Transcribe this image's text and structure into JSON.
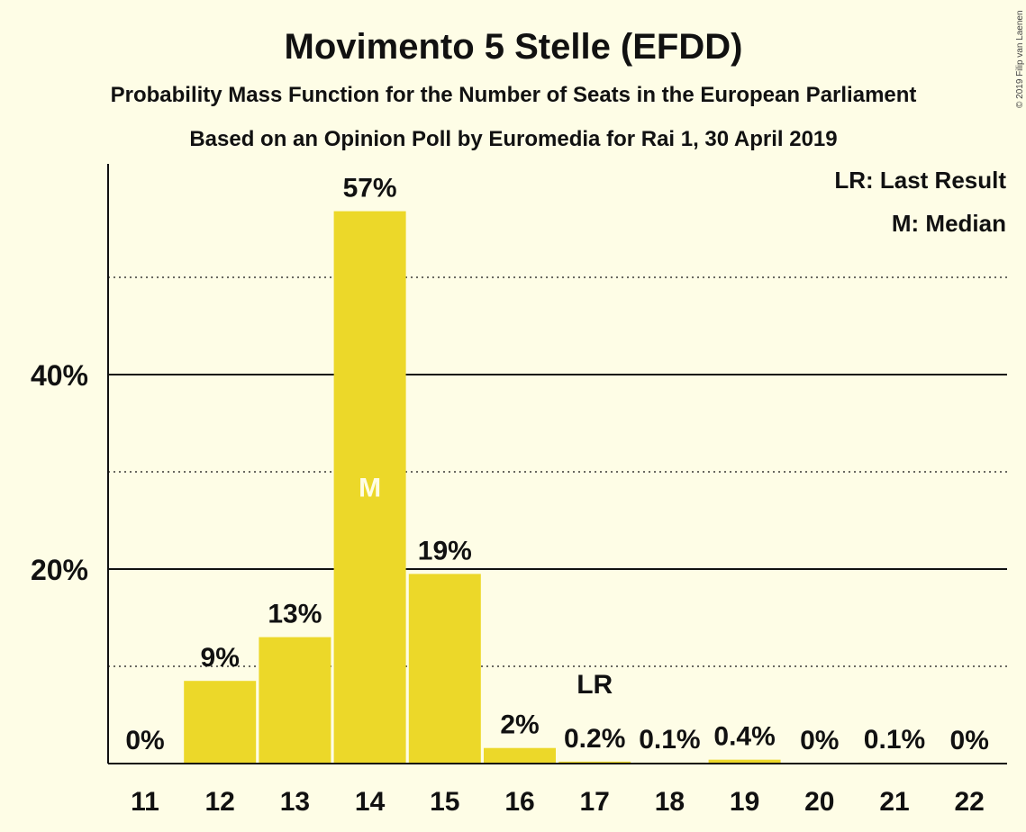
{
  "chart_data": {
    "type": "bar",
    "title": "Movimento 5 Stelle (EFDD)",
    "subtitle": "Probability Mass Function for the Number of Seats in the European Parliament",
    "subtitle2": "Based on an Opinion Poll by Euromedia for Rai 1, 30 April 2019",
    "copyright": "© 2019 Filip van Laenen",
    "legend": [
      "LR: Last Result",
      "M: Median"
    ],
    "categories": [
      "11",
      "12",
      "13",
      "14",
      "15",
      "16",
      "17",
      "18",
      "19",
      "20",
      "21",
      "22"
    ],
    "values": [
      0,
      8.5,
      13,
      56.8,
      19.5,
      1.6,
      0.2,
      0.1,
      0.4,
      0,
      0.1,
      0
    ],
    "labels": [
      "0%",
      "9%",
      "13%",
      "57%",
      "19%",
      "2%",
      "0.2%",
      "0.1%",
      "0.4%",
      "0%",
      "0.1%",
      "0%"
    ],
    "median_category": "14",
    "median_marker": "M",
    "last_result_category": "17",
    "last_result_marker": "LR",
    "ylim": [
      0,
      62
    ],
    "yticks_major": [
      20,
      40
    ],
    "ytick_labels": [
      "20%",
      "40%"
    ],
    "yticks_minor": [
      10,
      30,
      50
    ],
    "bar_color": "#ecd829",
    "background_color": "#fefde6",
    "xlabel": "",
    "ylabel": ""
  }
}
